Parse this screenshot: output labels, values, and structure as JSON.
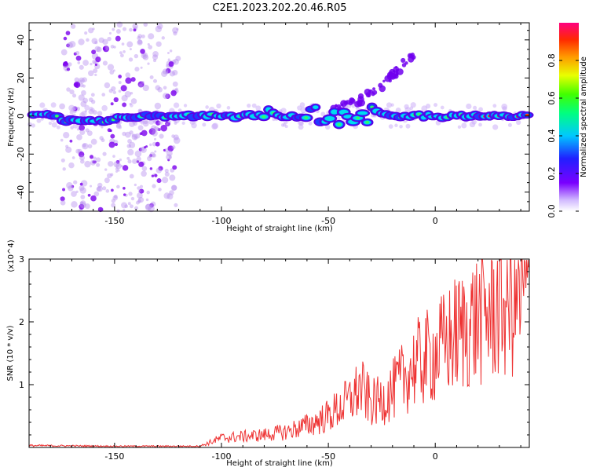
{
  "title": "C2E1.2023.202.20.46.R05",
  "chart_data": [
    {
      "type": "heatmap",
      "name": "spectrogram",
      "xlabel": "Height of straight line (km)",
      "ylabel": "Frequency (Hz)",
      "xlim": [
        -190,
        44
      ],
      "ylim": [
        -50,
        49
      ],
      "xticks": [
        -150,
        -100,
        -50,
        0
      ],
      "yticks": [
        -40,
        -20,
        0,
        20,
        40
      ],
      "colorbar": {
        "label": "Normalized spectral amplitude",
        "range": [
          0,
          1
        ],
        "ticks": [
          0.0,
          0.2,
          0.4,
          0.6,
          0.8
        ]
      },
      "features": {
        "scatter_band_km": [
          -175,
          -120
        ],
        "main_line_freq_hz": 0,
        "main_line_range_km": [
          -190,
          44
        ],
        "branch": {
          "from_km": -48,
          "to_km": -10,
          "freq_from_hz": 3,
          "freq_to_hz": 33
        }
      }
    },
    {
      "type": "line",
      "name": "snr",
      "xlabel": "Height of straight line (km)",
      "ylabel": "SNR (10 * v/v)",
      "scale_label": "(x10^4)",
      "xlim": [
        -190,
        44
      ],
      "ylim": [
        0,
        3
      ],
      "xticks": [
        -150,
        -100,
        -50,
        0
      ],
      "yticks": [
        1,
        2,
        3
      ],
      "color": "#ee3333",
      "envelope": {
        "x": [
          -190,
          -150,
          -110,
          -100,
          -80,
          -70,
          -60,
          -50,
          -40,
          -35,
          -30,
          -25,
          -20,
          -15,
          -10,
          0,
          10,
          20,
          30,
          44
        ],
        "y": [
          0.03,
          0.02,
          0.02,
          0.15,
          0.2,
          0.25,
          0.35,
          0.5,
          0.75,
          0.95,
          0.7,
          0.75,
          0.9,
          1.1,
          1.3,
          1.5,
          1.8,
          2.05,
          2.25,
          2.45
        ]
      }
    }
  ]
}
